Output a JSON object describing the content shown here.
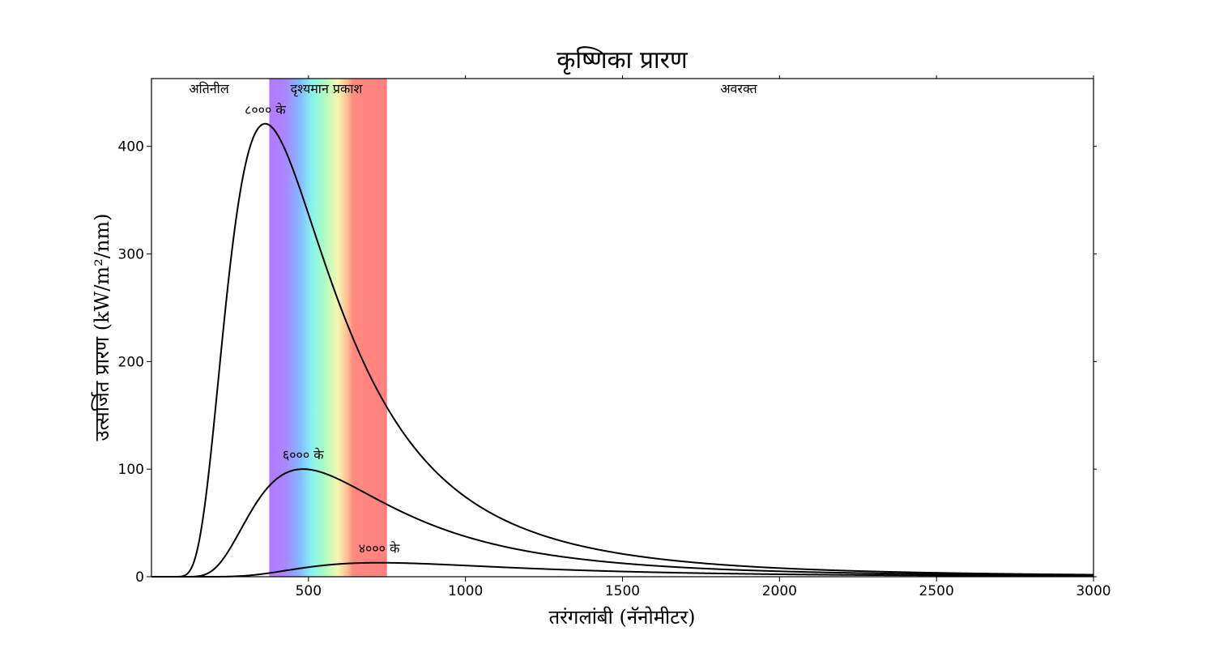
{
  "chart_data": {
    "type": "line",
    "title": "कृष्णिका प्रारण",
    "xlabel": "तरंगलांबी (नॅनोमीटर)",
    "ylabel": "उत्सर्जित प्रारण (kW/m²/nm)",
    "xlim": [
      0,
      3000
    ],
    "ylim": [
      0,
      463
    ],
    "x_ticks": [
      500,
      1000,
      1500,
      2000,
      2500,
      3000
    ],
    "y_ticks": [
      0,
      100,
      200,
      300,
      400
    ],
    "grid": false,
    "regions": [
      {
        "label": "अतिनील",
        "range": [
          0,
          375
        ]
      },
      {
        "label": "दृश्यमान प्रकाश",
        "range": [
          375,
          750
        ]
      },
      {
        "label": "अवरक्त",
        "range": [
          750,
          3000
        ]
      }
    ],
    "series": [
      {
        "name": "८००० के",
        "temperature_k": 8000,
        "peak": {
          "x": 362,
          "y": 421
        },
        "x": [
          100,
          150,
          200,
          250,
          300,
          362,
          400,
          500,
          600,
          750,
          1000,
          1500,
          2000,
          2500,
          3000
        ],
        "values": [
          0.1,
          8,
          77,
          216,
          355,
          421,
          414,
          330,
          239,
          148,
          72,
          22,
          8.5,
          3.9,
          2.0
        ]
      },
      {
        "name": "६००० के",
        "temperature_k": 6000,
        "peak": {
          "x": 483,
          "y": 100
        },
        "x": [
          200,
          300,
          400,
          483,
          600,
          750,
          1000,
          1500,
          2000,
          2500,
          3000
        ],
        "values": [
          9,
          54,
          92,
          100,
          92,
          71,
          42,
          15,
          6.5,
          3.1,
          1.7
        ]
      },
      {
        "name": "४००० के",
        "temperature_k": 4000,
        "peak": {
          "x": 725,
          "y": 13
        },
        "x": [
          300,
          400,
          500,
          600,
          725,
          1000,
          1500,
          2000,
          2500,
          3000
        ],
        "values": [
          0.8,
          4.4,
          8.8,
          11.8,
          13,
          11.4,
          6.5,
          3.5,
          2.0,
          1.2
        ]
      }
    ]
  }
}
